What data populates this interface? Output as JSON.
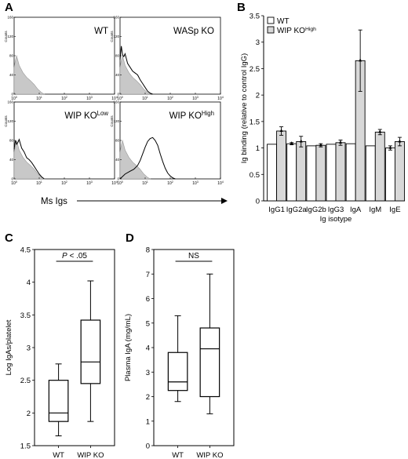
{
  "panel_labels": [
    "A",
    "B",
    "C",
    "D"
  ],
  "chart_data": [
    {
      "panel": "A",
      "type": "line",
      "subplots": [
        {
          "label": "WT",
          "label_sup": ""
        },
        {
          "label": "WASp KO",
          "label_sup": ""
        },
        {
          "label": "WIP KO",
          "label_sup": "Low"
        },
        {
          "label": "WIP KO",
          "label_sup": "High"
        }
      ],
      "x_ticks": [
        "10",
        "10",
        "10",
        "10",
        "10"
      ],
      "x_tick_sups": [
        "0",
        "1",
        "2",
        "3",
        "4"
      ],
      "y_ticks": [
        "0",
        "40",
        "80",
        "120",
        "160"
      ],
      "ylabel": "Counts",
      "xlabel": "Ms Igs",
      "xlim": [
        0,
        4
      ],
      "ylim": [
        0,
        160
      ],
      "curves": {
        "wt_control": [
          [
            0,
            55
          ],
          [
            0.05,
            70
          ],
          [
            0.1,
            80
          ],
          [
            0.2,
            60
          ],
          [
            0.35,
            45
          ],
          [
            0.5,
            35
          ],
          [
            0.65,
            28
          ],
          [
            0.8,
            20
          ],
          [
            0.95,
            10
          ],
          [
            1.1,
            3
          ],
          [
            1.2,
            0
          ]
        ],
        "wasp_test": [
          [
            0,
            72
          ],
          [
            0.05,
            100
          ],
          [
            0.1,
            82
          ],
          [
            0.15,
            78
          ],
          [
            0.2,
            84
          ],
          [
            0.3,
            64
          ],
          [
            0.4,
            56
          ],
          [
            0.5,
            48
          ],
          [
            0.6,
            44
          ],
          [
            0.7,
            40
          ],
          [
            0.8,
            30
          ],
          [
            0.9,
            22
          ],
          [
            1.0,
            14
          ],
          [
            1.1,
            6
          ],
          [
            1.2,
            2
          ],
          [
            1.3,
            0
          ]
        ],
        "low_test": [
          [
            0,
            62
          ],
          [
            0.05,
            80
          ],
          [
            0.1,
            72
          ],
          [
            0.15,
            76
          ],
          [
            0.2,
            82
          ],
          [
            0.3,
            64
          ],
          [
            0.4,
            56
          ],
          [
            0.5,
            44
          ],
          [
            0.6,
            40
          ],
          [
            0.7,
            34
          ],
          [
            0.8,
            26
          ],
          [
            0.9,
            18
          ],
          [
            1.0,
            10
          ],
          [
            1.1,
            4
          ],
          [
            1.2,
            0
          ]
        ],
        "high_test": [
          [
            0,
            0
          ],
          [
            0.2,
            10
          ],
          [
            0.4,
            16
          ],
          [
            0.55,
            20
          ],
          [
            0.7,
            28
          ],
          [
            0.8,
            38
          ],
          [
            0.9,
            52
          ],
          [
            1.0,
            66
          ],
          [
            1.1,
            78
          ],
          [
            1.2,
            84
          ],
          [
            1.3,
            86
          ],
          [
            1.4,
            80
          ],
          [
            1.5,
            70
          ],
          [
            1.6,
            52
          ],
          [
            1.7,
            36
          ],
          [
            1.8,
            22
          ],
          [
            1.9,
            12
          ],
          [
            2.0,
            6
          ],
          [
            2.1,
            2
          ],
          [
            2.2,
            0
          ]
        ]
      }
    },
    {
      "panel": "B",
      "type": "bar",
      "categories": [
        "IgG1",
        "IgG2a",
        "IgG2b",
        "IgG3",
        "IgA",
        "IgM",
        "IgE"
      ],
      "series": [
        {
          "name": "WT",
          "values": [
            1.07,
            1.08,
            1.04,
            1.07,
            1.08,
            1.04,
            1.0
          ],
          "errors": [
            0,
            0.02,
            0,
            0,
            0,
            0,
            0.04
          ],
          "color": "#ffffff"
        },
        {
          "name": "WIP KO",
          "name_sup": "High",
          "values": [
            1.32,
            1.12,
            1.05,
            1.1,
            2.65,
            1.3,
            1.12
          ],
          "errors": [
            0.08,
            0.1,
            0.03,
            0.05,
            0.58,
            0.05,
            0.08
          ],
          "color": "#d8d8d8"
        }
      ],
      "ylabel": "Ig binding (relative to control IgG)",
      "xlabel": "Ig isotype",
      "ylim": [
        0,
        3.5
      ],
      "y_ticks": [
        "0",
        "0.5",
        "1",
        "1.5",
        "2",
        "2.5",
        "3",
        "3.5"
      ],
      "legend": "top-left"
    },
    {
      "panel": "C",
      "type": "box",
      "categories": [
        "WT",
        "WIP KO"
      ],
      "boxes": [
        {
          "min": 1.65,
          "q1": 1.87,
          "median": 2.0,
          "q3": 2.5,
          "max": 2.75
        },
        {
          "min": 1.87,
          "q1": 2.45,
          "median": 2.78,
          "q3": 3.42,
          "max": 4.02
        }
      ],
      "ylabel": "Log IgAs/platelet",
      "ylim": [
        1.5,
        4.5
      ],
      "y_ticks": [
        "1.5",
        "2",
        "2.5",
        "3",
        "3.5",
        "4",
        "4.5"
      ],
      "annotation": "P < .05"
    },
    {
      "panel": "D",
      "type": "box",
      "categories": [
        "WT",
        "WIP KO"
      ],
      "boxes": [
        {
          "min": 1.8,
          "q1": 2.25,
          "median": 2.6,
          "q3": 3.8,
          "max": 5.3
        },
        {
          "min": 1.3,
          "q1": 2.0,
          "median": 3.95,
          "q3": 4.8,
          "max": 7.0
        }
      ],
      "ylabel": "Plasma IgA (mg/mL)",
      "ylim": [
        0,
        8
      ],
      "y_ticks": [
        "0",
        "1",
        "2",
        "3",
        "4",
        "5",
        "6",
        "7",
        "8"
      ],
      "annotation": "NS"
    }
  ]
}
